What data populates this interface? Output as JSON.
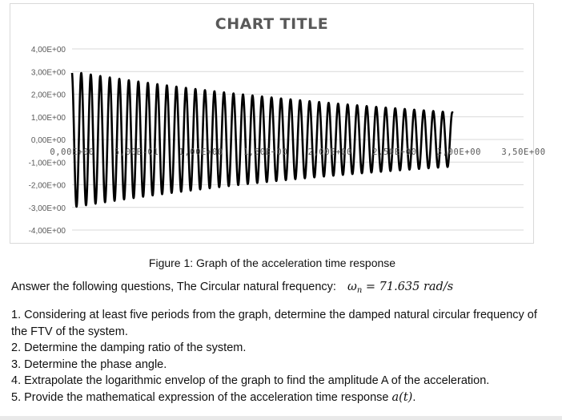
{
  "chart_data": {
    "type": "line",
    "title": "CHART TITLE",
    "xlabel": "",
    "ylabel": "",
    "xlim": [
      0,
      3.5
    ],
    "ylim": [
      -4,
      4
    ],
    "x_ticks": [
      0,
      0.5,
      1.0,
      1.5,
      2.0,
      2.5,
      3.0,
      3.5
    ],
    "x_tick_labels": [
      "0,00E+00",
      "5,00E-01",
      "1,00E+00",
      "1,50E+00",
      "2,00E+00",
      "2,50E+00",
      "3,00E+00",
      "3,50E+00"
    ],
    "y_ticks": [
      4,
      3,
      2,
      1,
      0,
      -1,
      -2,
      -3,
      -4
    ],
    "y_tick_labels": [
      "4,00E+00",
      "3,00E+00",
      "2,00E+00",
      "1,00E+00",
      "0,00E+00",
      "-1,00E+00",
      "-2,00E+00",
      "-3,00E+00",
      "-4,00E+00"
    ],
    "grid": true,
    "legend": "none",
    "series": [
      {
        "color": "#000000",
        "x_start": 0,
        "x_end": 2.95,
        "envelope": {
          "initial_amplitude": 3.0,
          "final_amplitude": 1.2
        },
        "cycles": 40,
        "description_points": [
          {
            "x": 0.0,
            "y": 3.0
          },
          {
            "x": 0.5,
            "y": 2.6
          },
          {
            "x": 1.0,
            "y": 2.2
          },
          {
            "x": 1.5,
            "y": 1.85
          },
          {
            "x": 2.0,
            "y": 1.6
          },
          {
            "x": 2.5,
            "y": 1.35
          },
          {
            "x": 2.95,
            "y": 1.2
          }
        ]
      }
    ]
  },
  "caption": "Figure 1: Graph of the acceleration time response",
  "intro": {
    "text": "Answer the following questions, The Circular natural frequency:",
    "omega": "ω",
    "subscript": "n",
    "equals": "= 71.635",
    "unit": "rad/s"
  },
  "questions": [
    {
      "text": "1. Considering at least five periods from the graph, determine the damped natural circular frequency of the FTV of the system."
    },
    {
      "text": "2. Determine the damping ratio of the system."
    },
    {
      "text": "3. Determine the phase angle."
    },
    {
      "text": "4. Extrapolate the logarithmic envelop of the graph to find the amplitude A of the acceleration."
    },
    {
      "text_before": "5. Provide the mathematical expression of the acceleration time response ",
      "math": "a(t)",
      "text_after": "."
    }
  ]
}
